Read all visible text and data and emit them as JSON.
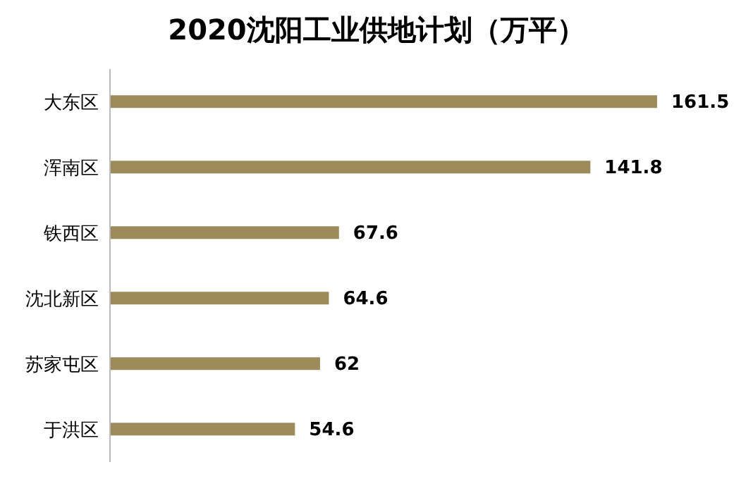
{
  "chart_data": {
    "type": "bar",
    "orientation": "horizontal",
    "title": "2020沈阳工业供地计划（万平）",
    "categories": [
      "大东区",
      "浑南区",
      "铁西区",
      "沈北新区",
      "苏家屯区",
      "于洪区"
    ],
    "values": [
      161.5,
      141.8,
      67.6,
      64.6,
      62,
      54.6
    ],
    "color": "#9e8b5b",
    "data_labels": true,
    "grid": false,
    "legend": false
  }
}
